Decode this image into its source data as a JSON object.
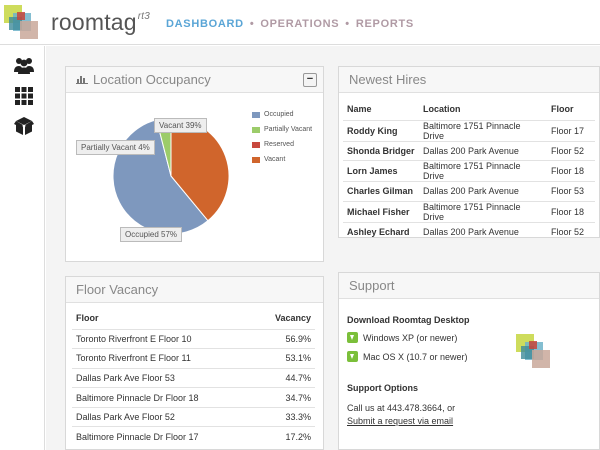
{
  "brand": {
    "name": "roomtag",
    "version": "rt3"
  },
  "nav": {
    "items": [
      "DASHBOARD",
      "OPERATIONS",
      "REPORTS"
    ],
    "active": 0
  },
  "colors": {
    "occupied": "#7e98be",
    "partially_vacant": "#9ccc6a",
    "reserved": "#c8483e",
    "vacant": "#d0652c",
    "accent": "#5aa5d6"
  },
  "sidebar": {
    "icons": [
      "people-icon",
      "grid-icon",
      "box-icon"
    ]
  },
  "occupancy": {
    "title": "Location Occupancy",
    "collapse_label": "−",
    "callouts": {
      "vacant": "Vacant 39%",
      "partial": "Partially Vacant 4%",
      "occupied": "Occupied 57%"
    }
  },
  "chart_data": {
    "type": "pie",
    "categories": [
      "Occupied",
      "Partially Vacant",
      "Reserved",
      "Vacant"
    ],
    "values": [
      57,
      4,
      0,
      39
    ]
  },
  "hires": {
    "title": "Newest Hires",
    "columns": [
      "Name",
      "Location",
      "Floor"
    ],
    "rows": [
      [
        "Roddy King",
        "Baltimore 1751 Pinnacle Drive",
        "Floor 17"
      ],
      [
        "Shonda Bridger",
        "Dallas 200 Park Avenue",
        "Floor 52"
      ],
      [
        "Lorn James",
        "Baltimore 1751 Pinnacle Drive",
        "Floor 18"
      ],
      [
        "Charles Gilman",
        "Dallas 200 Park Avenue",
        "Floor 53"
      ],
      [
        "Michael Fisher",
        "Baltimore 1751 Pinnacle Drive",
        "Floor 18"
      ],
      [
        "Ashley Echard",
        "Dallas 200 Park Avenue",
        "Floor 52"
      ]
    ]
  },
  "vacancy": {
    "title": "Floor Vacancy",
    "columns": [
      "Floor",
      "Vacancy"
    ],
    "rows": [
      [
        "Toronto Riverfront E Floor 10",
        "56.9%"
      ],
      [
        "Toronto Riverfront E Floor 11",
        "53.1%"
      ],
      [
        "Dallas Park Ave Floor 53",
        "44.7%"
      ],
      [
        "Baltimore Pinnacle Dr Floor 18",
        "34.7%"
      ],
      [
        "Dallas Park Ave Floor 52",
        "33.3%"
      ],
      [
        "Baltimore Pinnacle Dr Floor 17",
        "17.2%"
      ]
    ]
  },
  "support": {
    "title": "Support",
    "download_heading": "Download Roomtag Desktop",
    "downloads": [
      "Windows XP (or newer)",
      "Mac OS X (10.7 or newer)"
    ],
    "options_heading": "Support Options",
    "call_text": "Call us at 443.478.3664, or",
    "request_link": "Submit a request via email"
  }
}
